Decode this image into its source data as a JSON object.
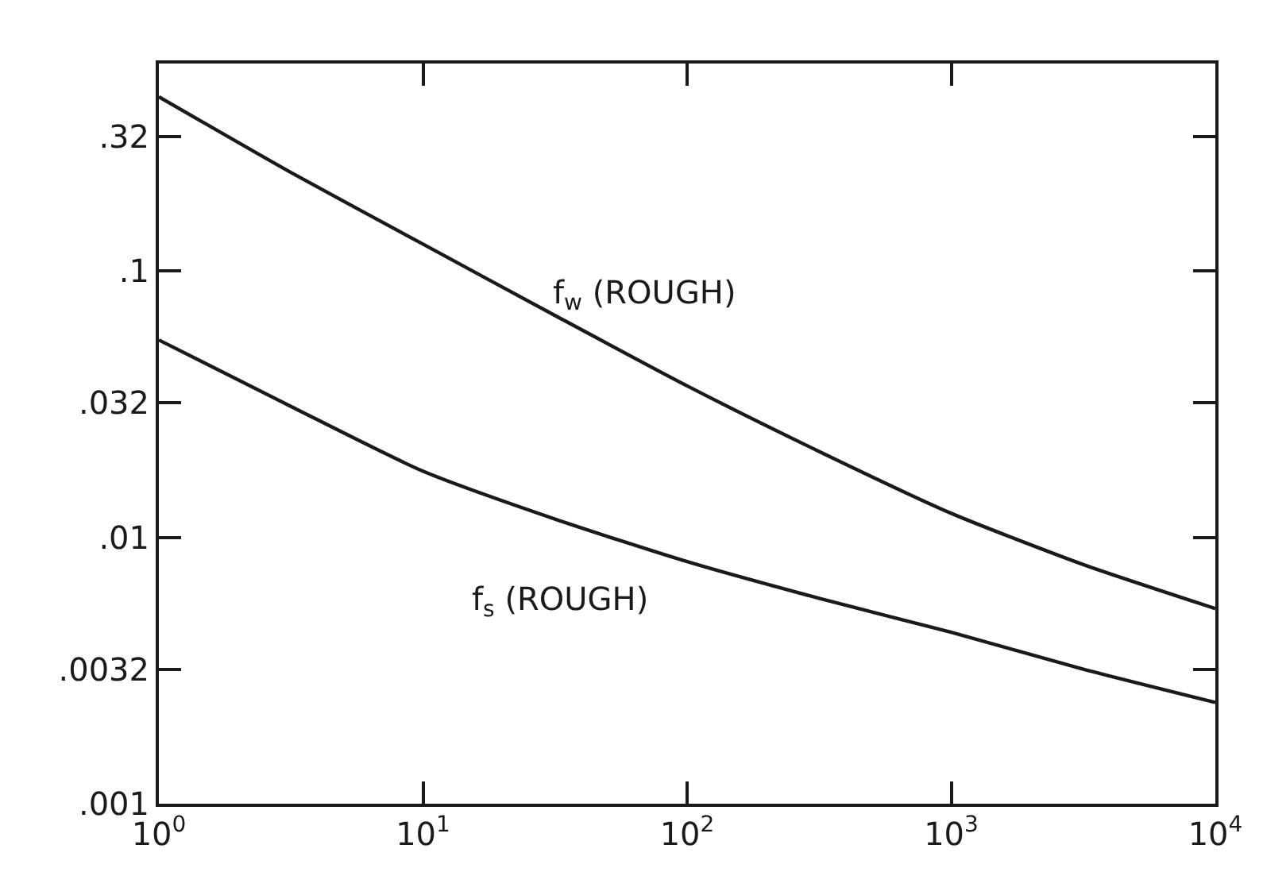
{
  "chart_data": {
    "type": "line",
    "log": "xy",
    "marker": "none",
    "line_style": "solid",
    "x": [
      1,
      3.16,
      10,
      31.6,
      100,
      316,
      1000,
      3160,
      10000
    ],
    "series": [
      {
        "color": "#1a1a1a",
        "values": [
          0.45,
          0.234,
          0.126,
          0.068,
          0.037,
          0.021,
          0.0123,
          0.0079,
          0.0054
        ]
      },
      {
        "color": "#1a1a1a",
        "values": [
          0.055,
          0.031,
          0.0177,
          0.0117,
          0.0081,
          0.0059,
          0.0044,
          0.0032,
          0.0024
        ]
      }
    ],
    "xlim": [
      1,
      10000
    ],
    "ylim": [
      0.001,
      0.6
    ],
    "xticks": [
      {
        "value": 1,
        "label": "10$^{0}$"
      },
      {
        "value": 10,
        "label": "10$^{1}$"
      },
      {
        "value": 100,
        "label": "10$^{2}$"
      },
      {
        "value": 1000,
        "label": "10$^{3}$"
      },
      {
        "value": 10000,
        "label": "10$^{4}$"
      }
    ],
    "yticks": [
      {
        "value": 0.001,
        "label": ".001"
      },
      {
        "value": 0.0032,
        "label": ".0032"
      },
      {
        "value": 0.01,
        "label": ".01"
      },
      {
        "value": 0.032,
        "label": ".032"
      },
      {
        "value": 0.1,
        "label": ".1"
      },
      {
        "value": 0.32,
        "label": ".32"
      }
    ],
    "annotations": [
      "f$_{w}$ (ROUGH)",
      "f$_{s}$ (ROUGH)"
    ]
  }
}
